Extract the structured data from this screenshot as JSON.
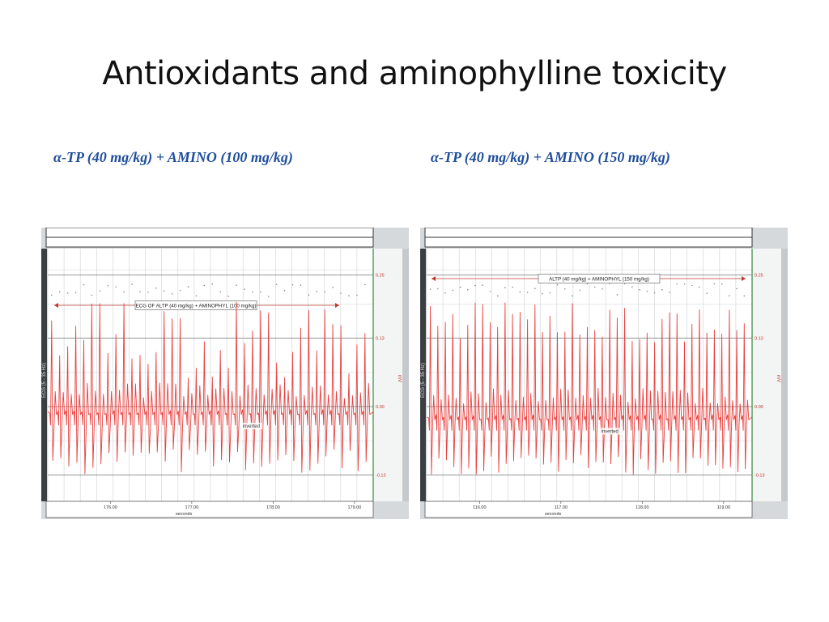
{
  "slide": {
    "title": "Antioxidants and aminophylline toxicity"
  },
  "captions": [
    "α-TP (40 mg/kg) + AMINO (100 mg/kg)",
    "α-TP (40 mg/kg) + AMINO (150 mg/kg)"
  ],
  "colors": {
    "trace": "#e8413f",
    "caption": "#1f4e9c",
    "right_strip_border": "#2e8b3c",
    "grid": "#cfd3d6"
  },
  "chart_data": [
    {
      "type": "line",
      "title": "",
      "annotation_label": "ECG OF ALTP (40 mg/kg) + AMINOPHYL (100 mg/kg)",
      "annotation_text": "inverted",
      "xlabel": "seconds",
      "ylabel_left": "ECG (5 - 35 Hz)",
      "ylabel_right": "mV",
      "x_ticks": [
        "176.00",
        "177.00",
        "178.00",
        "179.00"
      ],
      "y_ticks": [
        "0.25",
        "0.13",
        "0.00",
        "-0.13"
      ],
      "xlim": [
        175.23,
        179.23
      ],
      "ylim": [
        -0.18,
        0.3
      ],
      "grid": true,
      "beats": {
        "count": 40,
        "baseline": -0.01,
        "r_peak_range": [
          0.05,
          0.2
        ],
        "s_trough_range": [
          -0.13,
          -0.08
        ]
      }
    },
    {
      "type": "line",
      "title": "",
      "annotation_label": "ALTP (40 mg/kg) + AMINOPHYL (150 mg/kg)",
      "annotation_text": "inverted",
      "xlabel": "seconds",
      "ylabel_left": "ECG (5 - 35 Hz)",
      "ylabel_right": "mV",
      "x_ticks": [
        "116.00",
        "117.00",
        "118.00",
        "119.00"
      ],
      "y_ticks": [
        "0.25",
        "0.13",
        "0.00",
        "-0.13"
      ],
      "xlim": [
        115.35,
        119.35
      ],
      "ylim": [
        -0.18,
        0.3
      ],
      "grid": true,
      "beats": {
        "count": 43,
        "baseline": -0.02,
        "r_peak_range": [
          0.12,
          0.2
        ],
        "s_trough_range": [
          -0.13,
          -0.09
        ]
      }
    }
  ]
}
